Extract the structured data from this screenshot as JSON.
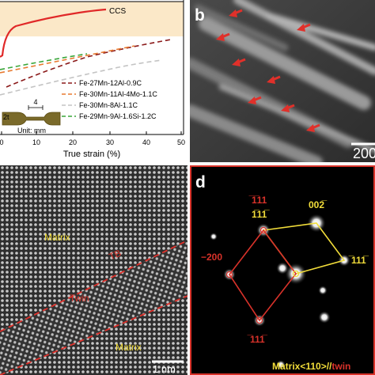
{
  "panel_a": {
    "x_ticks": [
      "0",
      "10",
      "20",
      "30",
      "40",
      "50"
    ],
    "xlabel": "True strain (%)",
    "curve_labels": {
      "ccs": "CCS"
    },
    "legend": [
      {
        "name": "Fe-27Mn-12Al-0.9C",
        "color": "#8b1a1a"
      },
      {
        "name": "Fe-30Mn-11Al-4Mo-1.1C",
        "color": "#e87a30"
      },
      {
        "name": "Fe-30Mn-8Al-1.1C",
        "color": "#c4c4c4"
      },
      {
        "name": "Fe-29Mn-9Al-1.6Si-1.2C",
        "color": "#3aa63a"
      }
    ],
    "inset": {
      "dim_label": "4",
      "thickness_label": "2t",
      "unit": "Unit: mm"
    },
    "band_color": "#fbe8c8",
    "ccs_color": "#e02828"
  },
  "panel_b": {
    "label": "b",
    "scale_text": "200"
  },
  "panel_c": {
    "labels": {
      "matrix_top": "Matrix",
      "tb": "TB",
      "twin": "Twin",
      "matrix_bottom": "Matrix"
    },
    "scale_text": "1 nm"
  },
  "panel_d": {
    "label": "d",
    "spots": {
      "twin_top": "̅1̅11",
      "matrix_top": "1̅11̅",
      "matrix_002": "002̅",
      "twin_200": "−200",
      "matrix_right": "̅111̅",
      "twin_bottom": "̅111̅"
    },
    "footer_yellow": "Matrix<110>//",
    "footer_red": "twin"
  }
}
